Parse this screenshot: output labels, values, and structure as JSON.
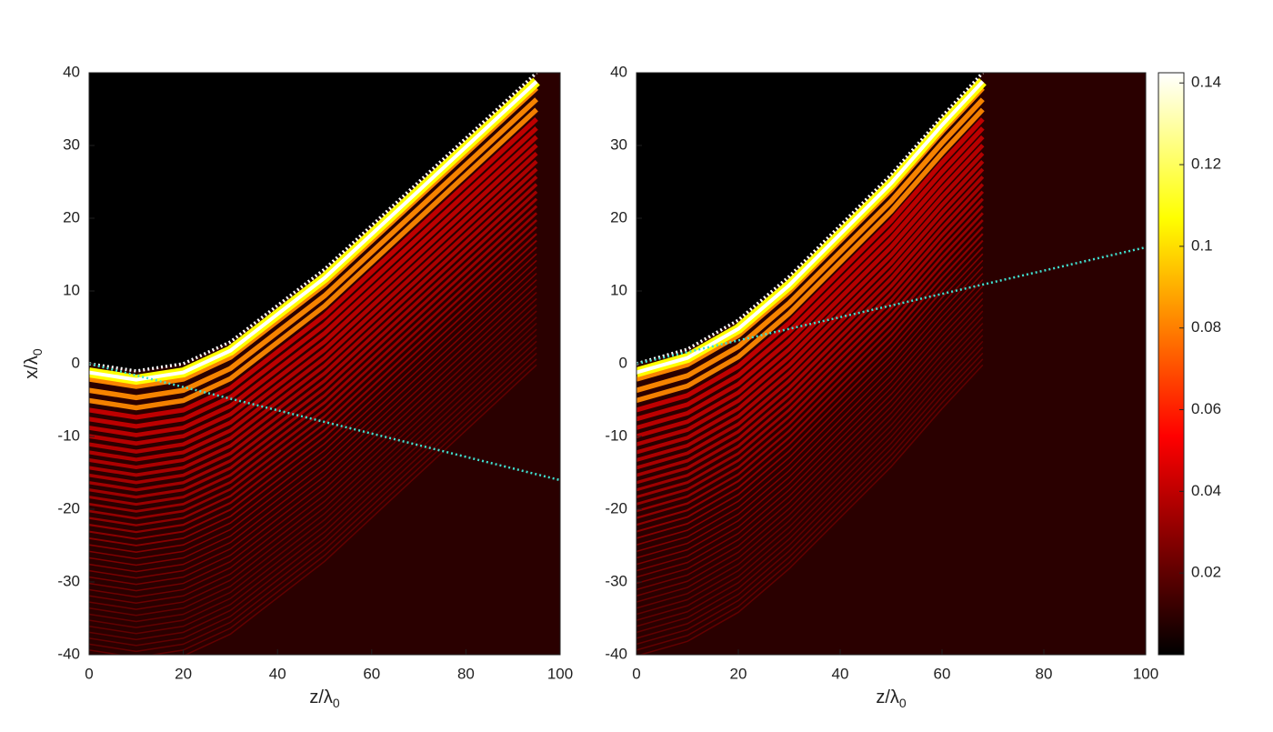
{
  "chart_data": [
    {
      "type": "heatmap",
      "colormap": "hot",
      "xlim": [
        0,
        100
      ],
      "ylim": [
        -40,
        40
      ],
      "xticks": [
        0,
        20,
        40,
        60,
        80,
        100
      ],
      "yticks": [
        -40,
        -30,
        -20,
        -10,
        0,
        10,
        20,
        30,
        40
      ],
      "xlabel": {
        "text": "z/λ",
        "subscript": "0"
      },
      "ylabel": {
        "text": "x/λ",
        "subscript": "0"
      },
      "series": [
        {
          "color": "#ffffff",
          "x": [
            0,
            10,
            20,
            30,
            40,
            50,
            60,
            70,
            80,
            90,
            95
          ],
          "values": [
            0,
            -1,
            0,
            3,
            8,
            13,
            19,
            25,
            31,
            37,
            40
          ]
        },
        {
          "color": "#40e0d0",
          "x": [
            0,
            100
          ],
          "values": [
            0,
            -16
          ]
        }
      ]
    },
    {
      "type": "heatmap",
      "colormap": "hot",
      "xlim": [
        0,
        100
      ],
      "ylim": [
        -40,
        40
      ],
      "xticks": [
        0,
        20,
        40,
        60,
        80,
        100
      ],
      "yticks": [
        -40,
        -30,
        -20,
        -10,
        0,
        10,
        20,
        30,
        40
      ],
      "xlabel": {
        "text": "z/λ",
        "subscript": "0"
      },
      "series": [
        {
          "color": "#ffffff",
          "x": [
            0,
            10,
            20,
            30,
            40,
            50,
            60,
            68
          ],
          "values": [
            0,
            2,
            6,
            12,
            19,
            26,
            34,
            40
          ]
        },
        {
          "color": "#40e0d0",
          "x": [
            0,
            100
          ],
          "values": [
            0,
            16
          ]
        }
      ],
      "colorbar": {
        "lim": [
          0,
          0.1425
        ],
        "ticks": [
          0.02,
          0.04,
          0.06,
          0.08,
          0.1,
          0.12,
          0.14
        ]
      }
    }
  ]
}
